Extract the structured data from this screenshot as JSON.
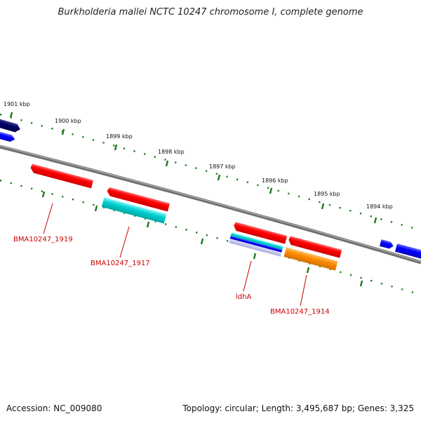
{
  "title": "Burkholderia mallei NCTC 10247 chromosome I, complete genome",
  "footer": {
    "accession": "Accession: NC_009080",
    "topology": "Topology: circular; Length: 3,495,687 bp; Genes: 3,325"
  },
  "scale_labels": [
    "1901 kbp",
    "1900 kbp",
    "1899 kbp",
    "1898 kbp",
    "1897 kbp",
    "1896 kbp",
    "1895 kbp",
    "1894 kbp"
  ],
  "gene_labels": [
    "BMA10247_1919",
    "BMA10247_1917",
    "ldhA",
    "BMA10247_1914"
  ],
  "colors": {
    "backbone": "#808080",
    "tick": "#1a7a1a",
    "label": "#cc0000",
    "red_feature": "#ff0000",
    "cyan_feature": "#00cccc",
    "orange_feature": "#ff8c00",
    "blue_feature": "#0000ff",
    "navy_feature": "#000066"
  }
}
